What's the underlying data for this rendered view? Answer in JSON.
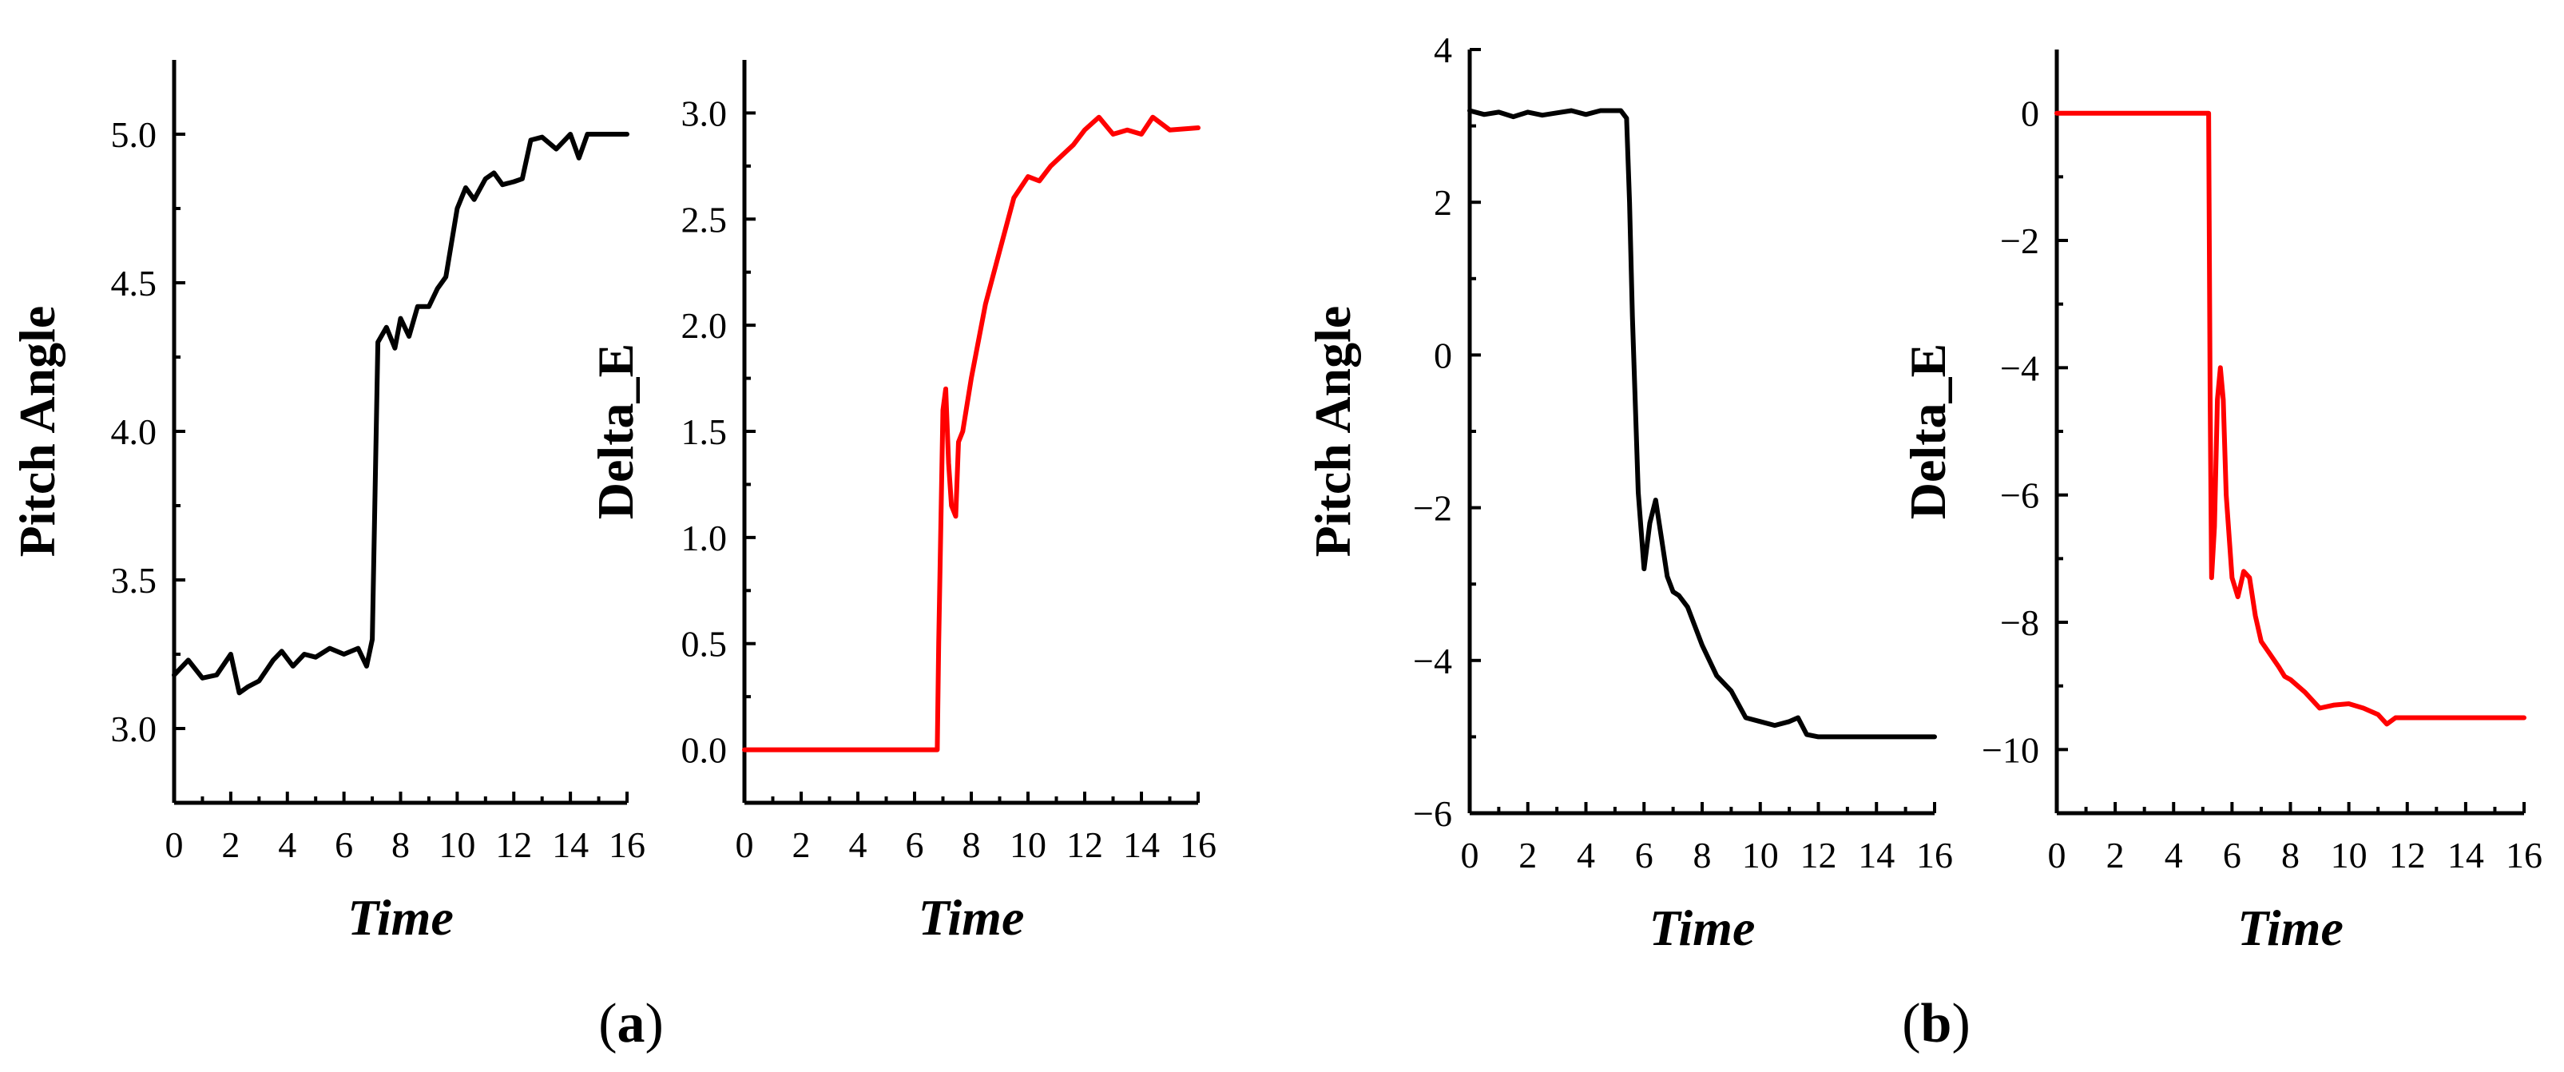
{
  "panels": [
    {
      "label_open": "(",
      "label_letter": "a",
      "label_close": ")"
    },
    {
      "label_open": "(",
      "label_letter": "b",
      "label_close": ")"
    }
  ],
  "chart_data": [
    {
      "id": "a-pitch",
      "type": "line",
      "panel": "a",
      "title": "",
      "xlabel": "Time",
      "ylabel": "Pitch Angle",
      "xlim": [
        0,
        16
      ],
      "ylim": [
        2.75,
        5.25
      ],
      "xticks": [
        0,
        2,
        4,
        6,
        8,
        10,
        12,
        14,
        16
      ],
      "yticks": [
        "3.0",
        "3.5",
        "4.0",
        "4.5",
        "5.0"
      ],
      "grid": false,
      "series": [
        {
          "name": "Pitch Angle",
          "color": "#000000",
          "x": [
            0,
            0.5,
            1,
            1.5,
            2,
            2.3,
            2.6,
            3,
            3.5,
            3.8,
            4.2,
            4.6,
            5,
            5.5,
            6,
            6.5,
            6.8,
            7,
            7.2,
            7.5,
            7.8,
            8,
            8.3,
            8.6,
            9,
            9.3,
            9.6,
            10,
            10.3,
            10.6,
            11,
            11.3,
            11.6,
            12,
            12.3,
            12.6,
            13,
            13.5,
            14,
            14.3,
            14.6,
            15,
            16
          ],
          "y": [
            3.18,
            3.23,
            3.17,
            3.18,
            3.25,
            3.12,
            3.14,
            3.16,
            3.23,
            3.26,
            3.21,
            3.25,
            3.24,
            3.27,
            3.25,
            3.27,
            3.21,
            3.3,
            4.3,
            4.35,
            4.28,
            4.38,
            4.32,
            4.42,
            4.42,
            4.48,
            4.52,
            4.75,
            4.82,
            4.78,
            4.85,
            4.87,
            4.83,
            4.84,
            4.85,
            4.98,
            4.99,
            4.95,
            5.0,
            4.92,
            5.0,
            5.0,
            5.0
          ]
        }
      ]
    },
    {
      "id": "a-delta",
      "type": "line",
      "panel": "a",
      "title": "",
      "xlabel": "Time",
      "ylabel": "Delta_E",
      "xlim": [
        0,
        16
      ],
      "ylim": [
        -0.25,
        3.25
      ],
      "xticks": [
        0,
        2,
        4,
        6,
        8,
        10,
        12,
        14,
        16
      ],
      "yticks": [
        "0.0",
        "0.5",
        "1.0",
        "1.5",
        "2.0",
        "2.5",
        "3.0"
      ],
      "grid": false,
      "series": [
        {
          "name": "Delta_E",
          "color": "#ff0000",
          "x": [
            0,
            6.8,
            6.85,
            7.0,
            7.1,
            7.2,
            7.3,
            7.45,
            7.55,
            7.7,
            8,
            8.5,
            9,
            9.5,
            10,
            10.4,
            10.8,
            11.2,
            11.6,
            12,
            12.5,
            13,
            13.5,
            14,
            14.4,
            15,
            16
          ],
          "y": [
            0,
            0,
            0.5,
            1.6,
            1.7,
            1.35,
            1.15,
            1.1,
            1.45,
            1.5,
            1.75,
            2.1,
            2.35,
            2.6,
            2.7,
            2.68,
            2.75,
            2.8,
            2.85,
            2.92,
            2.98,
            2.9,
            2.92,
            2.9,
            2.98,
            2.92,
            2.93
          ]
        }
      ]
    },
    {
      "id": "b-pitch",
      "type": "line",
      "panel": "b",
      "title": "",
      "xlabel": "Time",
      "ylabel": "Pitch Angle",
      "xlim": [
        0,
        16
      ],
      "ylim": [
        -6,
        4
      ],
      "xticks": [
        0,
        2,
        4,
        6,
        8,
        10,
        12,
        14,
        16
      ],
      "yticks": [
        "−6",
        "−4",
        "−2",
        "0",
        "2",
        "4"
      ],
      "grid": false,
      "series": [
        {
          "name": "Pitch Angle",
          "color": "#000000",
          "x": [
            0,
            0.5,
            1,
            1.5,
            2,
            2.5,
            3,
            3.5,
            4,
            4.5,
            5,
            5.2,
            5.4,
            5.5,
            5.6,
            5.8,
            6.0,
            6.2,
            6.4,
            6.6,
            6.8,
            7.0,
            7.2,
            7.5,
            8,
            8.5,
            9,
            9.5,
            10,
            10.5,
            11,
            11.3,
            11.6,
            12,
            16
          ],
          "y": [
            3.2,
            3.15,
            3.18,
            3.12,
            3.18,
            3.14,
            3.17,
            3.2,
            3.15,
            3.2,
            3.2,
            3.2,
            3.1,
            2.0,
            0.5,
            -1.8,
            -2.8,
            -2.2,
            -1.9,
            -2.4,
            -2.9,
            -3.1,
            -3.15,
            -3.3,
            -3.8,
            -4.2,
            -4.4,
            -4.75,
            -4.8,
            -4.85,
            -4.8,
            -4.75,
            -4.97,
            -5.0,
            -5.0
          ]
        }
      ]
    },
    {
      "id": "b-delta",
      "type": "line",
      "panel": "b",
      "title": "",
      "xlabel": "Time",
      "ylabel": "Delta_E",
      "xlim": [
        0,
        16
      ],
      "ylim": [
        -11,
        1
      ],
      "xticks": [
        0,
        2,
        4,
        6,
        8,
        10,
        12,
        14,
        16
      ],
      "yticks": [
        "−10",
        "−8",
        "−6",
        "−4",
        "−2",
        "0"
      ],
      "grid": false,
      "series": [
        {
          "name": "Delta_E",
          "color": "#ff0000",
          "x": [
            0,
            5.2,
            5.25,
            5.3,
            5.4,
            5.5,
            5.6,
            5.7,
            5.8,
            6.0,
            6.2,
            6.4,
            6.6,
            6.8,
            7.0,
            7.3,
            7.6,
            7.8,
            8,
            8.5,
            9,
            9.5,
            10,
            10.5,
            11,
            11.3,
            11.6,
            12,
            13,
            16
          ],
          "y": [
            0,
            0,
            -4.5,
            -7.3,
            -6.5,
            -4.5,
            -4.0,
            -4.5,
            -6.0,
            -7.3,
            -7.6,
            -7.2,
            -7.3,
            -7.9,
            -8.3,
            -8.5,
            -8.7,
            -8.85,
            -8.9,
            -9.1,
            -9.35,
            -9.3,
            -9.28,
            -9.35,
            -9.45,
            -9.6,
            -9.5,
            -9.5,
            -9.5,
            -9.5
          ]
        }
      ]
    }
  ]
}
